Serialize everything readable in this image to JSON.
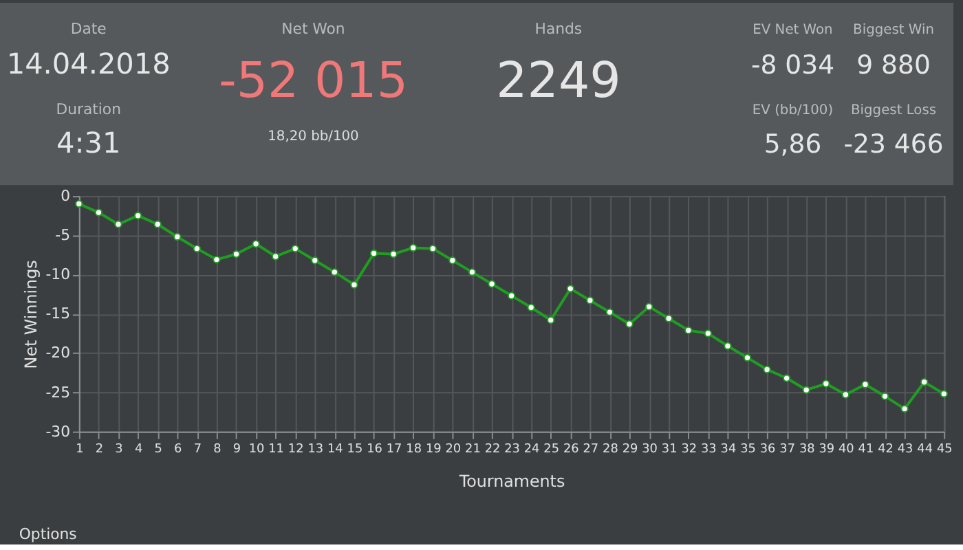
{
  "chart_data": {
    "type": "line",
    "xlabel": "Tournaments",
    "ylabel": "Net Winnings",
    "annotations": [
      "Date",
      "14.04.2018",
      "Duration",
      "4:31",
      "Net Won",
      "-52 015",
      "18,20 bb/100",
      "Hands",
      "2249",
      "EV Net Won",
      "-8 034",
      "Biggest Win",
      "9 880",
      "EV (bb/100)",
      "5,86",
      "Biggest Loss",
      "-23 466",
      "Options"
    ],
    "x": [
      1,
      2,
      3,
      4,
      5,
      6,
      7,
      8,
      9,
      10,
      11,
      12,
      13,
      14,
      15,
      16,
      17,
      18,
      19,
      20,
      21,
      22,
      23,
      24,
      25,
      26,
      27,
      28,
      29,
      30,
      31,
      32,
      33,
      34,
      35,
      36,
      37,
      38,
      39,
      40,
      41,
      42,
      43,
      44,
      45
    ],
    "series": [
      {
        "color": "#1f9e22",
        "values": [
          -1.0,
          -2.1,
          -3.6,
          -2.5,
          -3.6,
          -5.2,
          -6.7,
          -8.1,
          -7.4,
          -6.1,
          -7.7,
          -6.7,
          -8.2,
          -9.7,
          -11.3,
          -7.3,
          -7.4,
          -6.6,
          -6.7,
          -8.2,
          -9.7,
          -11.2,
          -12.7,
          -14.2,
          -15.8,
          -11.8,
          -13.3,
          -14.8,
          -16.3,
          -14.1,
          -15.6,
          -17.1,
          -17.5,
          -19.1,
          -20.6,
          -22.1,
          -23.2,
          -24.7,
          -23.9,
          -25.3,
          -24.0,
          -25.5,
          -27.1,
          -23.7,
          -25.2
        ]
      }
    ],
    "xlim": [
      1,
      45
    ],
    "xticks": [
      1,
      2,
      3,
      4,
      5,
      6,
      7,
      8,
      9,
      10,
      11,
      12,
      13,
      14,
      15,
      16,
      17,
      18,
      19,
      20,
      21,
      22,
      23,
      24,
      25,
      26,
      27,
      28,
      29,
      30,
      31,
      32,
      33,
      34,
      35,
      36,
      37,
      38,
      39,
      40,
      41,
      42,
      43,
      44,
      45
    ],
    "ylim": [
      -30,
      0
    ],
    "yticks": [
      -30,
      -25,
      -20,
      -15,
      -10,
      -5,
      0
    ],
    "grid": true,
    "marker": "circle",
    "line_style": "solid",
    "legend": false
  }
}
